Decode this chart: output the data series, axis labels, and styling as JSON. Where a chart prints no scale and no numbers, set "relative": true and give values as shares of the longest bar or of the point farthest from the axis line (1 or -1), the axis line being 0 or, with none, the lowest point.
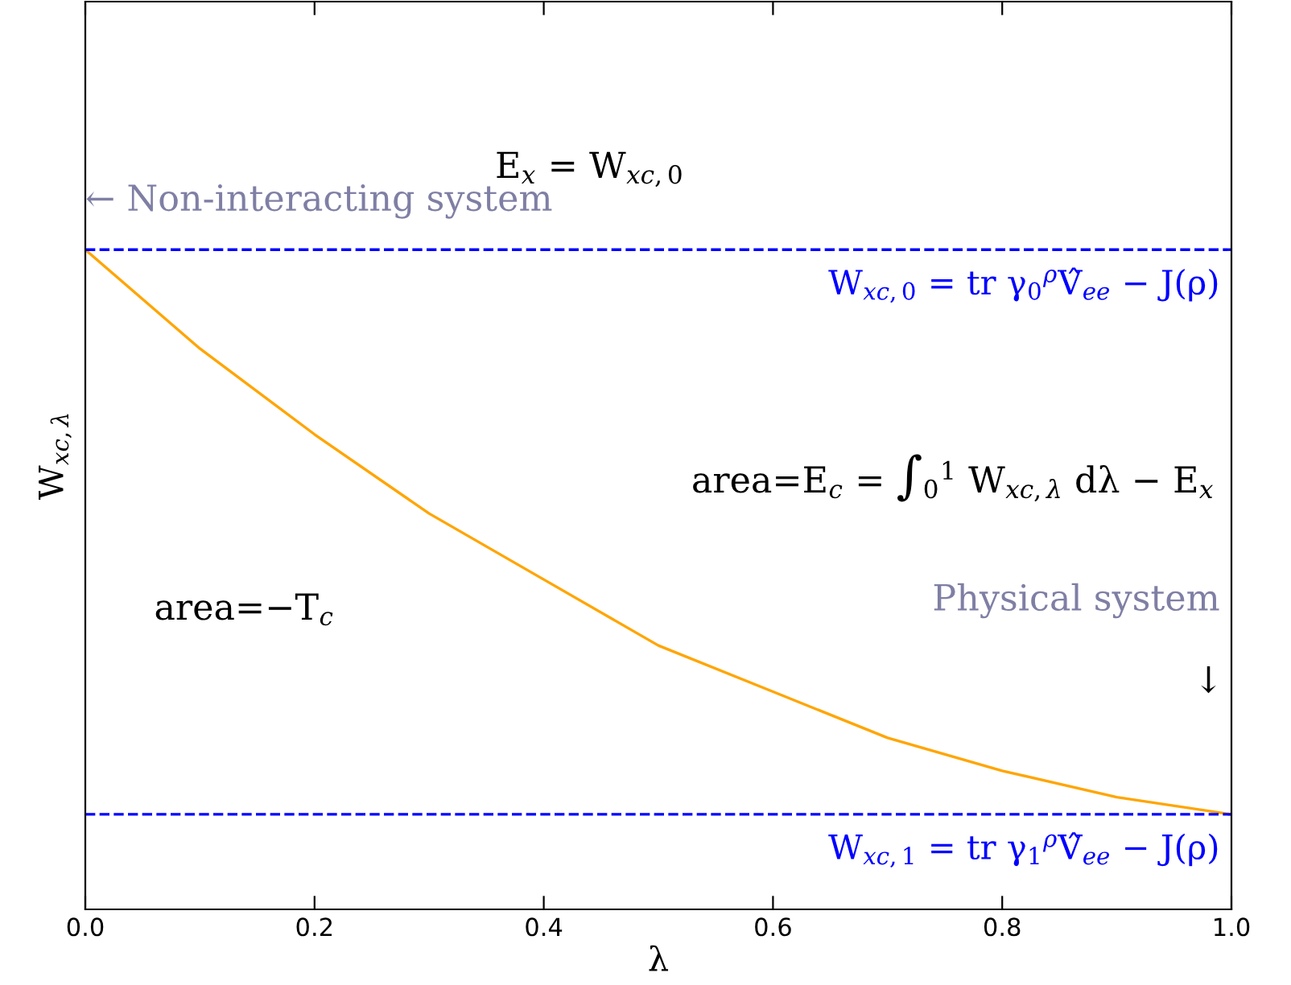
{
  "chart_data": {
    "type": "line",
    "relative": true,
    "xlabel": "λ",
    "ylabel": "W$_{xc,λ}$",
    "x": [
      0,
      0.1,
      0.2,
      0.3,
      0.4,
      0.5,
      0.6,
      0.7,
      0.8,
      0.9,
      1.0
    ],
    "series": [
      {
        "color": "#ffa500",
        "values": [
          1,
          0.85,
          0.72,
          0.6,
          0.5,
          0.4,
          0.33,
          0.26,
          0.21,
          0.17,
          0.144
        ]
      }
    ],
    "xlim": [
      0,
      1
    ],
    "xticks": [
      {
        "value": 0,
        "label": "0.0"
      },
      0.2,
      0.4,
      0.6,
      0.8,
      {
        "value": 1,
        "label": "1.0"
      }
    ],
    "grid": false,
    "legend": false,
    "marker": "none",
    "line_style": "solid",
    "ref_lines": [
      {
        "axis": "y",
        "value": 1,
        "label": "W$_{xc,0}$ = tr γ$_{0}$$^{ρ}$V̂$_{ee}$ − J(ρ)",
        "color": "#0000ff",
        "line_style": "dashed"
      },
      {
        "axis": "y",
        "value": 0.144,
        "label": "W$_{xc,1}$ = tr γ$_{1}$$^{ρ}$V̂$_{ee}$ − J(ρ)",
        "color": "#0000ff",
        "line_style": "dashed"
      }
    ],
    "annotations": [
      "← Non-interacting system",
      "E$_{x}$ = W$_{xc,0}$",
      "area=E$_{c}$ = ∫$_{0}$$^{1}$ W$_{xc,λ}$ dλ − E$_{x}$",
      "area=−T$_{c}$",
      "Physical system",
      "↓"
    ]
  }
}
